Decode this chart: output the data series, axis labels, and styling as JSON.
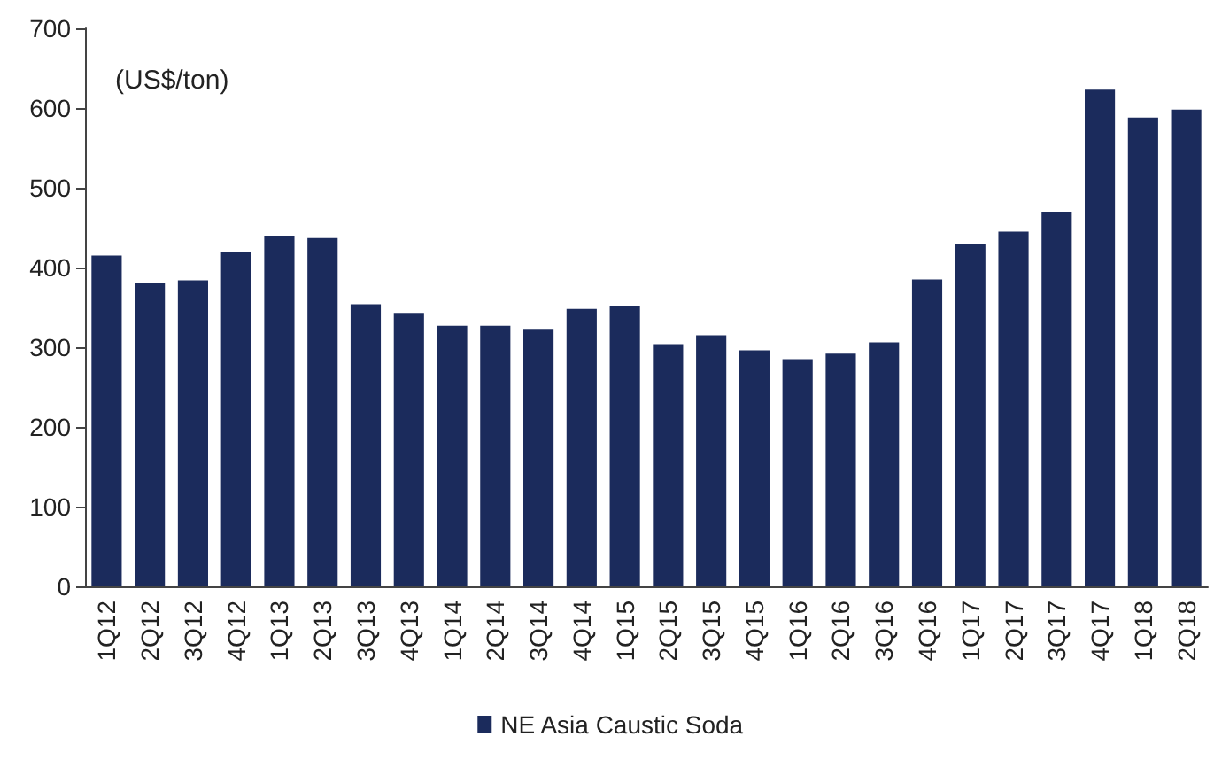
{
  "chart_data": {
    "type": "bar",
    "ylabel": "(US$/ton)",
    "categories": [
      "1Q12",
      "2Q12",
      "3Q12",
      "4Q12",
      "1Q13",
      "2Q13",
      "3Q13",
      "4Q13",
      "1Q14",
      "2Q14",
      "3Q14",
      "4Q14",
      "1Q15",
      "2Q15",
      "3Q15",
      "4Q15",
      "1Q16",
      "2Q16",
      "3Q16",
      "4Q16",
      "1Q17",
      "2Q17",
      "3Q17",
      "4Q17",
      "1Q18",
      "2Q18"
    ],
    "series": [
      {
        "name": "NE Asia Caustic Soda",
        "color": "#1b2b5c",
        "values": [
          415,
          381,
          384,
          420,
          440,
          437,
          354,
          343,
          327,
          327,
          323,
          348,
          351,
          304,
          315,
          296,
          285,
          292,
          306,
          385,
          430,
          445,
          470,
          623,
          588,
          598
        ]
      }
    ],
    "ylim": [
      0,
      700
    ],
    "yticks": [
      0,
      100,
      200,
      300,
      400,
      500,
      600,
      700
    ],
    "grid": false,
    "legend": "bottom"
  }
}
